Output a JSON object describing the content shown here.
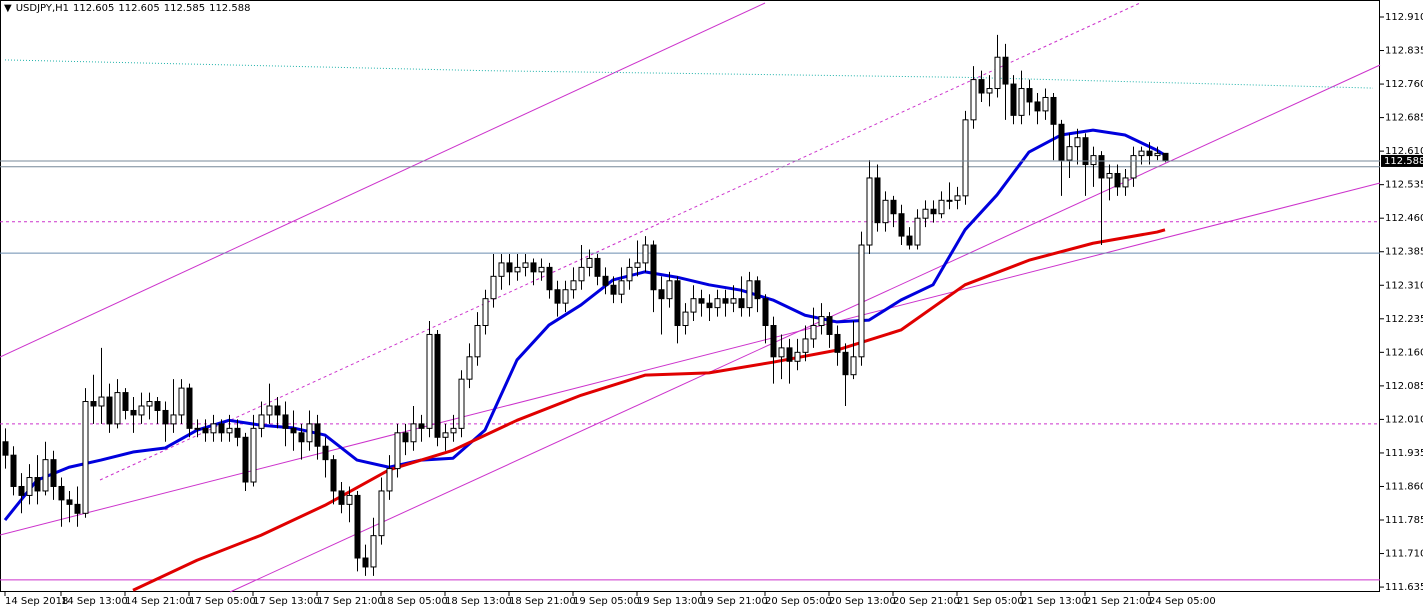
{
  "chart_data": {
    "type": "candlestick",
    "title": "USDJPY,H1",
    "ylim": [
      111.624,
      112.948
    ],
    "yticks": [
      111.635,
      {
        "value": 111.71,
        "label": "111.710"
      },
      111.785,
      {
        "value": 111.86,
        "label": "111.860"
      },
      111.935,
      {
        "value": 112.01,
        "label": "112.010"
      },
      112.085,
      {
        "value": 112.16,
        "label": "112.160"
      },
      112.235,
      {
        "value": 112.31,
        "label": "112.310"
      },
      112.385,
      {
        "value": 112.46,
        "label": "112.460"
      },
      112.535,
      {
        "value": 112.61,
        "label": "112.610"
      },
      112.685,
      {
        "value": 112.76,
        "label": "112.760"
      },
      112.835,
      {
        "value": 112.91,
        "label": "112.910"
      }
    ],
    "categories": [
      "14 Sep 2018",
      null,
      null,
      null,
      null,
      null,
      null,
      "14 Sep 13:00",
      null,
      null,
      null,
      null,
      null,
      null,
      null,
      "14 Sep 21:00",
      null,
      null,
      null,
      null,
      null,
      null,
      null,
      "17 Sep 05:00",
      null,
      null,
      null,
      null,
      null,
      null,
      null,
      "17 Sep 13:00",
      null,
      null,
      null,
      null,
      null,
      null,
      null,
      "17 Sep 21:00",
      null,
      null,
      null,
      null,
      null,
      null,
      null,
      "18 Sep 05:00",
      null,
      null,
      null,
      null,
      null,
      null,
      null,
      "18 Sep 13:00",
      null,
      null,
      null,
      null,
      null,
      null,
      null,
      "18 Sep 21:00",
      null,
      null,
      null,
      null,
      null,
      null,
      null,
      "19 Sep 05:00",
      null,
      null,
      null,
      null,
      null,
      null,
      null,
      "19 Sep 13:00",
      null,
      null,
      null,
      null,
      null,
      null,
      null,
      "19 Sep 21:00",
      null,
      null,
      null,
      null,
      null,
      null,
      null,
      "20 Sep 05:00",
      null,
      null,
      null,
      null,
      null,
      null,
      null,
      "20 Sep 13:00",
      null,
      null,
      null,
      null,
      null,
      null,
      null,
      "20 Sep 21:00",
      null,
      null,
      null,
      null,
      null,
      null,
      null,
      "21 Sep 05:00",
      null,
      null,
      null,
      null,
      null,
      null,
      null,
      "21 Sep 13:00",
      null,
      null,
      null,
      null,
      null,
      null,
      null,
      "21 Sep 21:00",
      null,
      null,
      null,
      null,
      null,
      null,
      null,
      "24 Sep 05:00",
      null,
      null
    ],
    "open": [
      111.96,
      111.93,
      111.86,
      111.84,
      111.88,
      111.85,
      111.92,
      111.86,
      111.83,
      111.82,
      111.8,
      112.05,
      112.04,
      112.06,
      112.0,
      112.07,
      112.03,
      112.02,
      112.04,
      112.05,
      112.03,
      112.0,
      112.02,
      112.08,
      111.99,
      111.99,
      111.98,
      112.0,
      111.98,
      111.99,
      111.97,
      111.87,
      111.99,
      112.02,
      112.04,
      112.02,
      111.99,
      111.98,
      111.96,
      112.0,
      111.95,
      111.92,
      111.85,
      111.82,
      111.84,
      111.7,
      111.68,
      111.75,
      111.85,
      111.9,
      111.98,
      111.96,
      112.0,
      111.99,
      112.2,
      111.97,
      111.98,
      111.99,
      112.1,
      112.15,
      112.22,
      112.28,
      112.33,
      112.36,
      112.34,
      112.35,
      112.36,
      112.34,
      112.35,
      112.3,
      112.27,
      112.3,
      112.32,
      112.35,
      112.37,
      112.33,
      112.31,
      112.29,
      112.32,
      112.35,
      112.36,
      112.4,
      112.3,
      112.28,
      112.32,
      112.22,
      112.25,
      112.28,
      112.27,
      112.26,
      112.28,
      112.27,
      112.28,
      112.26,
      112.32,
      112.28,
      112.22,
      112.15,
      112.17,
      112.14,
      112.16,
      112.19,
      112.22,
      112.24,
      112.2,
      112.16,
      112.11,
      112.15,
      112.4,
      112.55,
      112.45,
      112.5,
      112.47,
      112.42,
      112.4,
      112.46,
      112.48,
      112.47,
      112.5,
      112.5,
      112.51,
      112.68,
      112.77,
      112.74,
      112.75,
      112.82,
      112.76,
      112.69,
      112.75,
      112.72,
      112.7,
      112.73,
      112.67,
      112.59,
      112.62,
      112.64,
      112.58,
      112.6,
      112.55,
      112.56,
      112.53,
      112.55,
      112.6,
      112.61,
      112.6,
      112.605
    ],
    "high": [
      111.99,
      111.95,
      111.89,
      111.91,
      111.93,
      111.96,
      111.94,
      111.88,
      111.85,
      111.86,
      112.08,
      112.11,
      112.17,
      112.09,
      112.1,
      112.08,
      112.06,
      112.07,
      112.07,
      112.06,
      112.05,
      112.1,
      112.1,
      112.09,
      112.01,
      112.01,
      112.02,
      112.01,
      112.02,
      112.01,
      111.98,
      112.02,
      112.05,
      112.09,
      112.06,
      112.05,
      112.03,
      112.0,
      112.03,
      112.02,
      111.97,
      111.93,
      111.87,
      111.86,
      111.85,
      111.73,
      111.79,
      111.88,
      111.93,
      112.0,
      112.0,
      112.04,
      112.02,
      112.23,
      112.21,
      112.0,
      112.02,
      112.12,
      112.18,
      112.25,
      112.3,
      112.38,
      112.38,
      112.38,
      112.38,
      112.38,
      112.37,
      112.37,
      112.36,
      112.32,
      112.32,
      112.35,
      112.4,
      112.39,
      112.38,
      112.35,
      112.33,
      112.35,
      112.37,
      112.41,
      112.42,
      112.41,
      112.33,
      112.34,
      112.33,
      112.27,
      112.31,
      112.3,
      112.29,
      112.3,
      112.3,
      112.31,
      112.33,
      112.34,
      112.33,
      112.29,
      112.24,
      112.2,
      112.19,
      112.19,
      112.22,
      112.26,
      112.27,
      112.25,
      112.22,
      112.18,
      112.23,
      112.43,
      112.59,
      112.58,
      112.52,
      112.51,
      112.49,
      112.44,
      112.48,
      112.5,
      112.5,
      112.52,
      112.54,
      112.53,
      112.7,
      112.8,
      112.79,
      112.78,
      112.87,
      112.85,
      112.78,
      112.79,
      112.77,
      112.74,
      112.75,
      112.74,
      112.68,
      112.65,
      112.66,
      112.65,
      112.62,
      112.61,
      112.58,
      112.58,
      112.57,
      112.62,
      112.62,
      112.63,
      112.62,
      112.605
    ],
    "low": [
      111.9,
      111.84,
      111.8,
      111.82,
      111.82,
      111.84,
      111.83,
      111.77,
      111.78,
      111.77,
      111.79,
      112.0,
      112.0,
      111.98,
      111.99,
      112.01,
      111.98,
      112.0,
      112.01,
      112.0,
      111.96,
      111.98,
      112.0,
      111.97,
      111.97,
      111.96,
      111.96,
      111.96,
      111.96,
      111.95,
      111.85,
      111.86,
      111.97,
      112.0,
      111.99,
      111.95,
      111.94,
      111.92,
      111.94,
      111.92,
      111.88,
      111.82,
      111.8,
      111.78,
      111.67,
      111.66,
      111.66,
      111.73,
      111.83,
      111.88,
      111.93,
      111.94,
      111.96,
      111.97,
      111.95,
      111.94,
      111.96,
      111.97,
      112.08,
      112.13,
      112.2,
      112.26,
      112.3,
      112.31,
      112.32,
      112.33,
      112.31,
      112.32,
      112.28,
      112.24,
      112.25,
      112.28,
      112.3,
      112.33,
      112.31,
      112.29,
      112.27,
      112.27,
      112.3,
      112.33,
      112.34,
      112.25,
      112.2,
      112.26,
      112.18,
      112.2,
      112.23,
      112.24,
      112.23,
      112.24,
      112.24,
      112.25,
      112.24,
      112.24,
      112.25,
      112.18,
      112.09,
      112.1,
      112.09,
      112.12,
      112.14,
      112.17,
      112.2,
      112.17,
      112.13,
      112.04,
      112.1,
      112.13,
      112.38,
      112.43,
      112.43,
      112.44,
      112.4,
      112.39,
      112.39,
      112.44,
      112.45,
      112.46,
      112.48,
      112.48,
      112.49,
      112.66,
      112.72,
      112.71,
      112.73,
      112.68,
      112.67,
      112.67,
      112.69,
      112.67,
      112.68,
      112.59,
      112.51,
      112.55,
      112.58,
      112.51,
      112.53,
      112.4,
      112.5,
      112.51,
      112.51,
      112.53,
      112.58,
      112.58,
      112.59,
      112.585
    ],
    "close": [
      111.93,
      111.86,
      111.84,
      111.88,
      111.85,
      111.92,
      111.86,
      111.83,
      111.82,
      111.8,
      112.05,
      112.04,
      112.06,
      112.0,
      112.07,
      112.03,
      112.02,
      112.04,
      112.05,
      112.03,
      112.0,
      112.02,
      112.08,
      111.99,
      111.99,
      111.98,
      112.0,
      111.98,
      111.99,
      111.97,
      111.87,
      111.99,
      112.02,
      112.04,
      112.02,
      111.99,
      111.98,
      111.96,
      112.0,
      111.95,
      111.92,
      111.85,
      111.82,
      111.84,
      111.7,
      111.68,
      111.75,
      111.85,
      111.9,
      111.98,
      111.96,
      112.0,
      111.99,
      112.2,
      111.97,
      111.98,
      111.99,
      112.1,
      112.15,
      112.22,
      112.28,
      112.33,
      112.36,
      112.34,
      112.35,
      112.36,
      112.34,
      112.35,
      112.3,
      112.27,
      112.3,
      112.32,
      112.35,
      112.37,
      112.33,
      112.31,
      112.29,
      112.32,
      112.35,
      112.36,
      112.4,
      112.3,
      112.28,
      112.32,
      112.22,
      112.25,
      112.28,
      112.27,
      112.26,
      112.28,
      112.27,
      112.28,
      112.26,
      112.32,
      112.28,
      112.22,
      112.15,
      112.17,
      112.14,
      112.16,
      112.19,
      112.22,
      112.24,
      112.2,
      112.16,
      112.11,
      112.15,
      112.4,
      112.55,
      112.45,
      112.5,
      112.47,
      112.42,
      112.4,
      112.46,
      112.48,
      112.47,
      112.5,
      112.5,
      112.51,
      112.68,
      112.77,
      112.74,
      112.75,
      112.82,
      112.76,
      112.69,
      112.75,
      112.72,
      112.7,
      112.73,
      112.67,
      112.59,
      112.62,
      112.64,
      112.58,
      112.6,
      112.55,
      112.56,
      112.53,
      112.55,
      112.6,
      112.61,
      112.6,
      112.605,
      112.588
    ],
    "series": [
      {
        "color": "#20b2aa",
        "style": "dotted",
        "x": [
          0,
          60,
          120,
          171
        ],
        "values": [
          112.814,
          112.79,
          112.775,
          112.751
        ]
      },
      {
        "color": "#0000dd",
        "style": "solid",
        "x": [
          0,
          4,
          8,
          12,
          16,
          20,
          24,
          28,
          32,
          36,
          40,
          44,
          48,
          52,
          56,
          60,
          64,
          68,
          72,
          76,
          80,
          84,
          88,
          92,
          96,
          100,
          104,
          108,
          112,
          116,
          120,
          124,
          128,
          132,
          136,
          140,
          144,
          145
        ],
        "values": [
          111.785,
          111.874,
          111.903,
          111.919,
          111.937,
          111.946,
          111.986,
          112.008,
          111.997,
          111.991,
          111.975,
          111.919,
          111.903,
          111.919,
          111.923,
          111.986,
          112.143,
          112.221,
          112.266,
          112.322,
          112.34,
          112.328,
          112.311,
          112.299,
          112.277,
          112.243,
          112.228,
          112.232,
          112.277,
          112.311,
          112.434,
          112.512,
          112.608,
          112.646,
          112.657,
          112.646,
          112.612,
          112.601
        ]
      },
      {
        "color": "#e00000",
        "style": "solid",
        "x": [
          16,
          24,
          32,
          40,
          48,
          56,
          64,
          72,
          80,
          88,
          96,
          104,
          112,
          120,
          128,
          136,
          144,
          145
        ],
        "values": [
          111.628,
          111.695,
          111.751,
          111.818,
          111.897,
          111.941,
          112.008,
          112.064,
          112.109,
          112.114,
          112.138,
          112.165,
          112.21,
          112.311,
          112.366,
          112.404,
          112.429,
          112.434
        ]
      }
    ],
    "hlines": [
      {
        "value": 112.575,
        "color": "#778899",
        "style": "solid"
      },
      {
        "value": 112.382,
        "color": "#6a8caf",
        "style": "solid"
      },
      {
        "value": 112.452,
        "color": "#cc33cc",
        "style": "dashed"
      },
      {
        "value": 112.0,
        "color": "#cc33cc",
        "style": "dashed"
      },
      {
        "value": 111.651,
        "color": "#cc33cc",
        "style": "solid"
      }
    ]
  }
}
